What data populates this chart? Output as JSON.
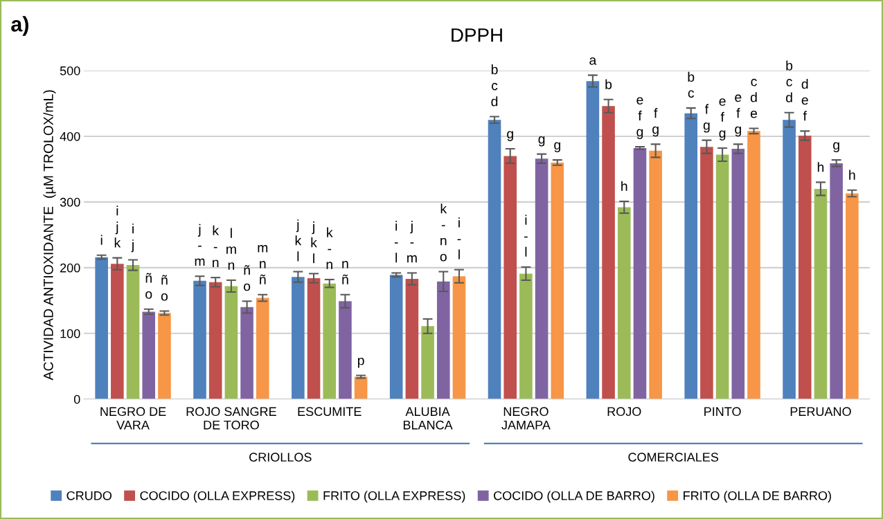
{
  "chart_data": {
    "type": "bar",
    "title": "DPPH",
    "ylabel": "ACTIVIDAD ANTIOXIDANTE  (µM TROLOX/mL)",
    "categories": [
      "NEGRO DE VARA",
      "ROJO SANGRE DE TORO",
      "ESCUMITE",
      "ALUBIA BLANCA",
      "NEGRO JAMAPA",
      "ROJO",
      "PINTO",
      "PERUANO"
    ],
    "series": [
      {
        "name": "CRUDO",
        "color": "#4f81bd",
        "values": [
          216,
          180,
          186,
          189,
          425,
          484,
          435,
          425
        ],
        "errors": [
          3,
          7,
          8,
          3,
          5,
          9,
          8,
          11
        ],
        "value_labels": [
          "i",
          "j\n-\nm",
          "j\nk\nl",
          "i\n-\nl",
          "b\nc\nd",
          "a",
          "b\nc",
          "b\nc\nd"
        ]
      },
      {
        "name": "COCIDO (OLLA EXPRESS)",
        "color": "#c0504d",
        "values": [
          206,
          178,
          184,
          183,
          370,
          446,
          384,
          401
        ],
        "errors": [
          9,
          7,
          7,
          9,
          11,
          10,
          10,
          7
        ],
        "value_labels": [
          "i\nj\nk",
          "k\n-\nn",
          "j\nk\nl",
          "j\n-\nm",
          "g",
          "b",
          "f\ng",
          "d\ne\nf"
        ]
      },
      {
        "name": "FRITO (OLLA EXPRESS)",
        "color": "#9bbb59",
        "values": [
          204,
          172,
          176,
          111,
          191,
          292,
          372,
          320
        ],
        "errors": [
          8,
          9,
          6,
          11,
          10,
          9,
          10,
          10
        ],
        "value_labels": [
          "i\nj",
          "l\nm\nn",
          "k\n-\nn",
          null,
          "i\n-\nl",
          "h",
          "e\nf\ng",
          "h"
        ]
      },
      {
        "name": "COCIDO (OLLA DE BARRO)",
        "color": "#8064a2",
        "values": [
          133,
          140,
          149,
          179,
          366,
          382,
          381,
          359
        ],
        "errors": [
          4,
          9,
          10,
          15,
          7,
          2,
          7,
          5
        ],
        "value_labels": [
          "ñ\no",
          "ñ\no",
          "n\nñ",
          "k\n-\nn\no",
          "g",
          "e\nf\ng",
          "e\nf\ng",
          "g"
        ]
      },
      {
        "name": "FRITO (OLLA DE BARRO)",
        "color": "#f79646",
        "values": [
          131,
          154,
          34,
          187,
          360,
          378,
          408,
          313
        ],
        "errors": [
          3,
          5,
          2,
          10,
          4,
          10,
          4,
          5
        ],
        "value_labels": [
          "ñ\no",
          "m\nn\nñ",
          "p",
          "i\n-\nl",
          "g",
          "f\ng",
          "c\nd\ne",
          "h"
        ]
      }
    ],
    "ylim": [
      0,
      500
    ],
    "yticks": [
      0,
      100,
      200,
      300,
      400,
      500
    ],
    "grid": "y",
    "legend": "bottom",
    "annotations": [
      "a)",
      "CRIOLLOS",
      "COMERCIALES"
    ]
  }
}
